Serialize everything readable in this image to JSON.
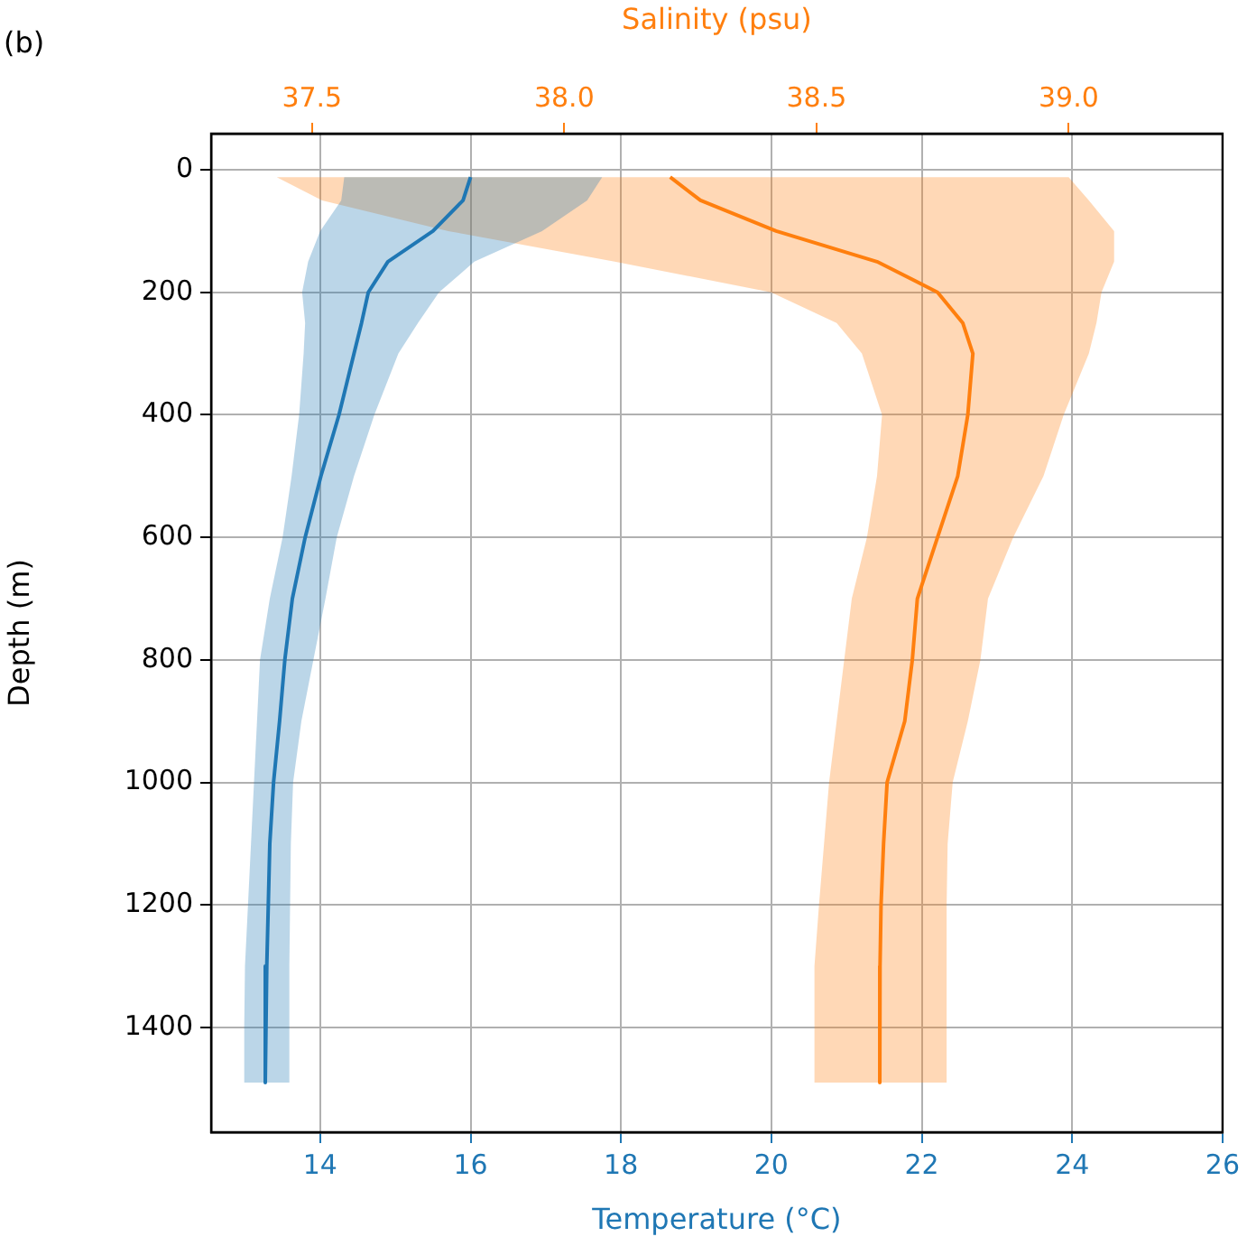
{
  "chart_data": {
    "type": "line",
    "orientation": "horizontal",
    "xlabel": "Temperature (°C)",
    "x2label": "Salinity (psu)",
    "ylabel": "Depth (m)",
    "annotations": [
      "(b)"
    ],
    "xlim": [
      12.55,
      26.0
    ],
    "xticks": [
      14,
      16,
      18,
      20,
      22,
      24,
      26
    ],
    "x2lim": [
      37.3,
      39.305
    ],
    "x2ticks": [
      37.5,
      {
        "value": 38,
        "label": "38.0"
      },
      38.5,
      {
        "value": 39,
        "label": "39.0"
      }
    ],
    "ylim": [
      1571,
      -59
    ],
    "yticks": [
      0,
      200,
      400,
      600,
      800,
      1000,
      1200,
      1400
    ],
    "grid": true,
    "series": [
      {
        "color": "#1f77b4",
        "x": [
          12,
          50,
          100,
          150,
          200,
          250,
          300,
          400,
          500,
          600,
          700,
          800,
          900,
          1000,
          1100,
          1200,
          1300,
          1400,
          1490
        ],
        "values": [
          16.0,
          15.9,
          15.5,
          14.9,
          14.64,
          14.55,
          14.45,
          14.25,
          14.01,
          13.8,
          13.63,
          13.53,
          13.46,
          13.38,
          13.33,
          13.31,
          13.29,
          13.27,
          13.27
        ],
        "lower": [
          14.32,
          14.28,
          14.0,
          13.84,
          13.76,
          13.8,
          13.78,
          13.72,
          13.62,
          13.5,
          13.33,
          13.2,
          13.16,
          13.12,
          13.08,
          13.04,
          13.0,
          12.99,
          12.99
        ],
        "upper": [
          17.75,
          17.55,
          16.95,
          16.05,
          15.58,
          15.3,
          15.04,
          14.72,
          14.45,
          14.22,
          14.07,
          13.91,
          13.75,
          13.64,
          13.61,
          13.6,
          13.59,
          13.59,
          13.59
        ]
      },
      {
        "color": "#ff7f0e",
        "axis": "x2",
        "x": [
          12,
          50,
          100,
          150,
          200,
          250,
          300,
          400,
          500,
          600,
          700,
          800,
          900,
          1000,
          1100,
          1200,
          1300,
          1400,
          1490
        ],
        "values": [
          38.21,
          38.27,
          38.42,
          38.62,
          38.74,
          38.79,
          38.81,
          38.8,
          38.78,
          38.74,
          38.7,
          38.69,
          38.675,
          38.64,
          38.633,
          38.628,
          38.626,
          38.624,
          38.627
        ],
        "lower": [
          37.43,
          37.52,
          37.77,
          38.1,
          38.41,
          38.54,
          38.59,
          38.63,
          38.62,
          38.6,
          38.57,
          38.555,
          38.54,
          38.525,
          38.515,
          38.505,
          38.496,
          38.496,
          38.496
        ],
        "upper": [
          39.0,
          39.04,
          39.09,
          39.09,
          39.065,
          39.055,
          39.04,
          38.99,
          38.95,
          38.89,
          38.84,
          38.825,
          38.8,
          38.77,
          38.76,
          38.758,
          38.758,
          38.758,
          38.758
        ]
      }
    ]
  }
}
